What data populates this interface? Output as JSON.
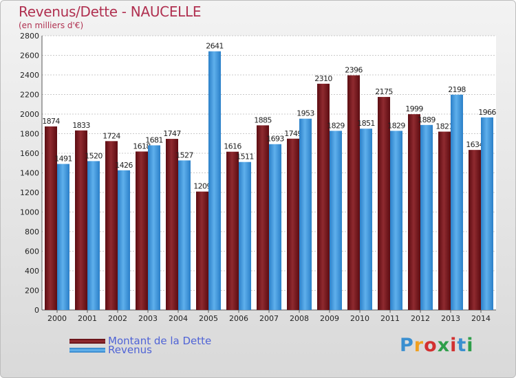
{
  "header": {
    "title": "Revenus/Dette - NAUCELLE",
    "subtitle": "(en milliers d'€)"
  },
  "legend": {
    "items": [
      {
        "label": "Montant de la Dette",
        "color": "#7a1a1f"
      },
      {
        "label": "Revenus",
        "color": "#2f8fd8"
      }
    ]
  },
  "logo": {
    "letters": [
      "P",
      "r",
      "o",
      "x",
      "i",
      "t",
      "i"
    ],
    "colors": [
      "#3a8fd0",
      "#f0a020",
      "#d23030",
      "#2e9e4a",
      "#d23030",
      "#3a8fd0",
      "#2e9e4a"
    ]
  },
  "chart_data": {
    "type": "bar",
    "categories": [
      "2000",
      "2001",
      "2002",
      "2003",
      "2004",
      "2005",
      "2006",
      "2007",
      "2008",
      "2009",
      "2010",
      "2011",
      "2012",
      "2013",
      "2014"
    ],
    "series": [
      {
        "name": "Montant de la Dette",
        "values": [
          1874,
          1833,
          1724,
          1618,
          1747,
          1209,
          1616,
          1885,
          1749,
          2310,
          2396,
          2175,
          1999,
          1821,
          1634
        ],
        "labels": [
          "1874",
          "1833",
          "1724",
          "1618",
          "1747",
          "1209",
          "1616",
          "1885",
          "1749",
          "2310",
          "2396",
          "2175",
          "1999",
          "1821",
          "1634"
        ]
      },
      {
        "name": "Revenus",
        "values": [
          1491,
          1520,
          1426,
          1681,
          1527,
          2641,
          1511,
          1693,
          1953,
          1829,
          1851,
          1829,
          1889,
          2198,
          1966
        ],
        "labels": [
          "1491",
          "1520",
          "1426",
          "1681",
          "1527",
          "2641",
          "1511",
          "1693",
          "1953",
          "1829",
          "1851",
          "1829",
          "1889",
          "2198",
          "1966"
        ]
      }
    ],
    "yticks": [
      0,
      200,
      400,
      600,
      800,
      1000,
      1200,
      1400,
      1600,
      1800,
      2000,
      2200,
      2400,
      2600,
      2800
    ],
    "ylim": [
      0,
      2800
    ],
    "grid": true
  }
}
